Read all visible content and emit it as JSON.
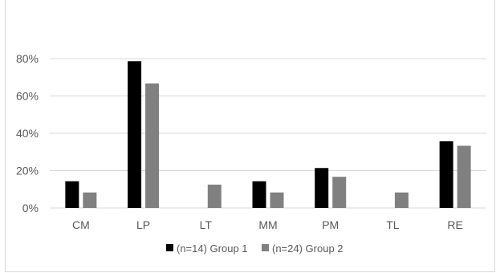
{
  "chart_data": {
    "type": "bar",
    "title": "",
    "xlabel": "",
    "ylabel": "",
    "categories": [
      "CM",
      "LP",
      "LT",
      "MM",
      "PM",
      "TL",
      "RE"
    ],
    "series": [
      {
        "name": "(n=14) Group 1",
        "color": "#000000",
        "values": [
          14.3,
          78.6,
          0,
          14.3,
          21.4,
          0,
          35.7
        ]
      },
      {
        "name": "(n=24) Group 2",
        "color": "#808080",
        "values": [
          8.3,
          66.7,
          12.5,
          8.3,
          16.7,
          8.3,
          33.3
        ]
      }
    ],
    "ylim": [
      0,
      80
    ],
    "yticks": [
      0,
      20,
      40,
      60,
      80
    ],
    "ytick_labels": [
      "0%",
      "20%",
      "40%",
      "60%",
      "80%"
    ],
    "grid": true,
    "legend_position": "bottom"
  }
}
